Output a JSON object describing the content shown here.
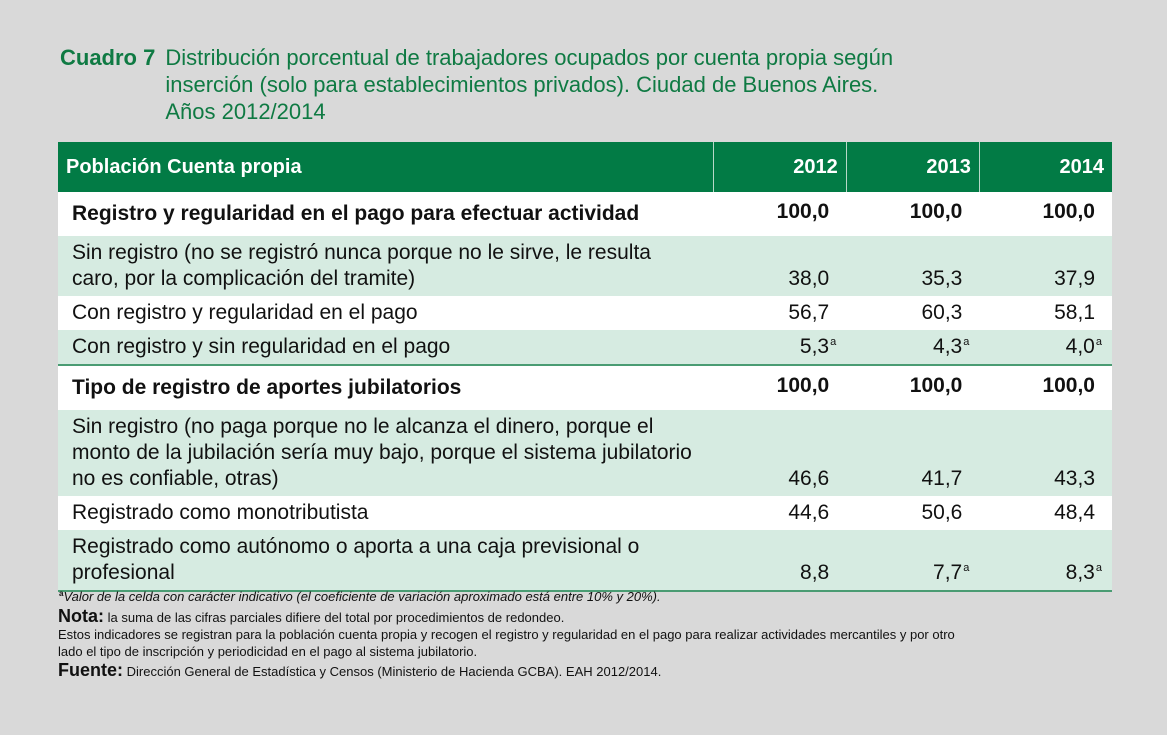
{
  "title": {
    "label": "Cuadro 7",
    "lines": [
      "Distribución porcentual de trabajadores ocupados por cuenta propia según",
      "inserción (solo para establecimientos privados). Ciudad de Buenos Aires.",
      "Años 2012/2014"
    ]
  },
  "table": {
    "header": {
      "label": "Población Cuenta propia",
      "years": [
        "2012",
        "2013",
        "2014"
      ]
    },
    "rows": [
      {
        "type": "section",
        "label": "Registro y regularidad en el pago para efectuar actividad",
        "values": [
          "100,0",
          "100,0",
          "100,0"
        ],
        "flags": [
          "",
          "",
          ""
        ]
      },
      {
        "type": "green",
        "label": "Sin registro (no se registró nunca porque no le sirve, le resulta caro, por la complicación del tramite)",
        "values": [
          "38,0",
          "35,3",
          "37,9"
        ],
        "flags": [
          "",
          "",
          ""
        ]
      },
      {
        "type": "white",
        "label": "Con registro y regularidad en el pago",
        "values": [
          "56,7",
          "60,3",
          "58,1"
        ],
        "flags": [
          "",
          "",
          ""
        ]
      },
      {
        "type": "green",
        "label": "Con registro y sin regularidad en el pago",
        "values": [
          "5,3",
          "4,3",
          "4,0"
        ],
        "flags": [
          "a",
          "a",
          "a"
        ]
      },
      {
        "type": "section",
        "label": "Tipo de registro de aportes jubilatorios",
        "values": [
          "100,0",
          "100,0",
          "100,0"
        ],
        "flags": [
          "",
          "",
          ""
        ]
      },
      {
        "type": "green",
        "label": "Sin registro (no paga porque no le alcanza el dinero, porque el monto de la jubilación sería muy bajo, porque el sistema jubilatorio no es confiable, otras)",
        "values": [
          "46,6",
          "41,7",
          "43,3"
        ],
        "flags": [
          "",
          "",
          ""
        ]
      },
      {
        "type": "white",
        "label": "Registrado como monotributista",
        "values": [
          "44,6",
          "50,6",
          "48,4"
        ],
        "flags": [
          "",
          "",
          ""
        ]
      },
      {
        "type": "green",
        "label": "Registrado como autónomo o aporta a una caja previsional o profesional",
        "values": [
          "8,8",
          "7,7",
          "8,3"
        ],
        "flags": [
          "",
          "a",
          "a"
        ]
      }
    ]
  },
  "notes": {
    "footnote_marker": "a",
    "footnote_text": "Valor de la celda con carácter indicativo (el coeficiente de variación aproximado está entre 10% y 20%).",
    "nota_label": "Nota:",
    "nota_text": " la suma de las cifras parciales difiere del total por procedimientos de redondeo.",
    "extra_line_1": "Estos indicadores se registran para la población cuenta propia  y  recogen el registro y regularidad en el pago para realizar actividades mercantiles y por otro",
    "extra_line_2": "lado el tipo de inscripción y periodicidad en el pago al sistema jubilatorio.",
    "fuente_label": "Fuente:",
    "fuente_text": " Dirección General de Estadística y Censos (Ministerio de Hacienda GCBA). EAH 2012/2014."
  },
  "colors": {
    "background": "#d9d9d9",
    "header_green": "#027b45",
    "title_green": "#0f7a43",
    "row_green": "#d6ebe1",
    "rule_green": "#4a9c73"
  }
}
